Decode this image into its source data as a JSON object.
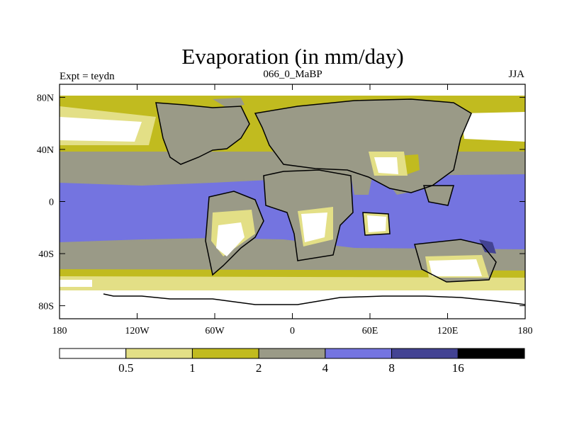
{
  "chart_data": {
    "type": "heatmap",
    "title": "Evaporation (in mm/day)",
    "left_string": "Expt = teydn",
    "center_string": "066_0_MaBP",
    "right_string": "JJA",
    "xlim": [
      -180,
      180
    ],
    "ylim": [
      -90,
      90
    ],
    "x_ticks": [
      {
        "value": -180,
        "label": "180"
      },
      {
        "value": -120,
        "label": "120W"
      },
      {
        "value": -60,
        "label": "60W"
      },
      {
        "value": 0,
        "label": "0"
      },
      {
        "value": 60,
        "label": "60E"
      },
      {
        "value": 120,
        "label": "120E"
      },
      {
        "value": 180,
        "label": "180"
      }
    ],
    "y_ticks": [
      {
        "value": 80,
        "label": "80N"
      },
      {
        "value": 40,
        "label": "40N"
      },
      {
        "value": 0,
        "label": "0"
      },
      {
        "value": -40,
        "label": "40S"
      },
      {
        "value": -80,
        "label": "80S"
      }
    ],
    "colorbar": {
      "levels": [
        {
          "value": 0.5,
          "label": "0.5"
        },
        {
          "value": 1,
          "label": "1"
        },
        {
          "value": 2,
          "label": "2"
        },
        {
          "value": 4,
          "label": "4"
        },
        {
          "value": 8,
          "label": "8"
        },
        {
          "value": 16,
          "label": "16"
        }
      ],
      "colors": [
        "#ffffff",
        "#e3df86",
        "#c1bb1f",
        "#9a9a87",
        "#7474e0",
        "#434393",
        "#000000"
      ]
    },
    "legend_placement": "bottom",
    "grid": false
  }
}
